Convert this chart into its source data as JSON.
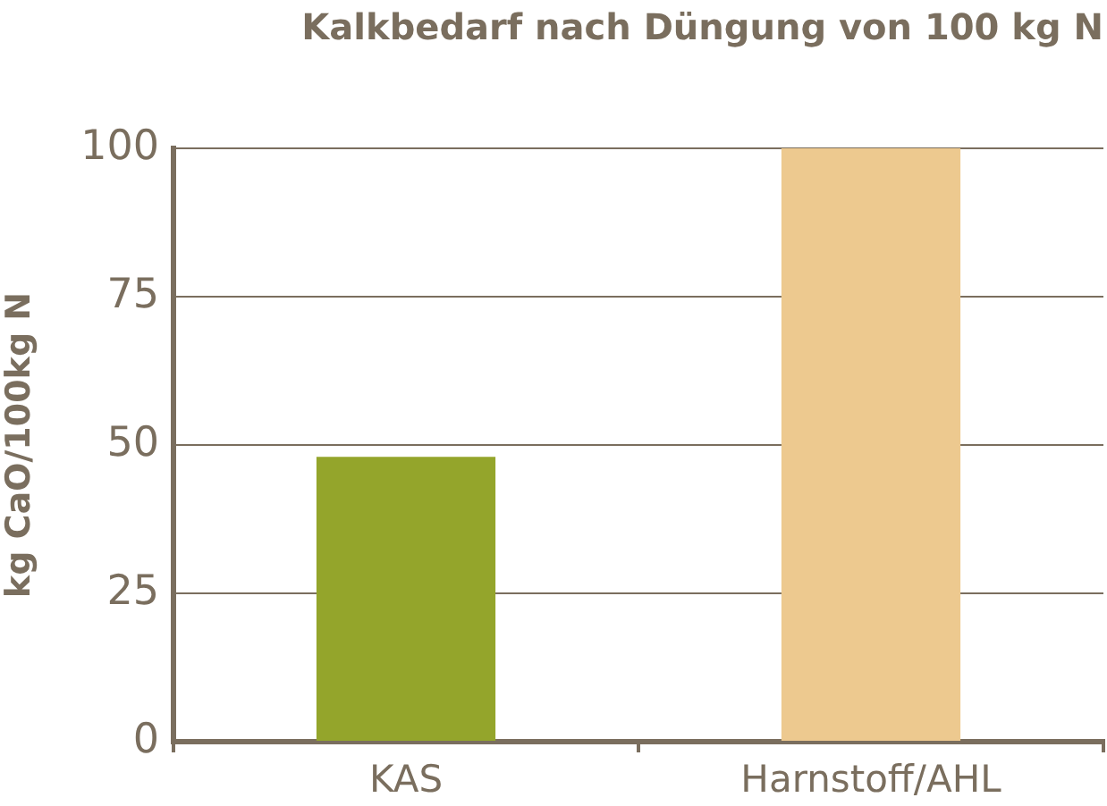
{
  "chart_data": {
    "type": "bar",
    "title": "Kalkbedarf nach Düngung von 100 kg N",
    "ylabel": "kg CaO/100kg N",
    "categories": [
      "KAS",
      "Harnstoff/AHL"
    ],
    "values": [
      48,
      100
    ],
    "colors": [
      "#94a52b",
      "#edc98f"
    ],
    "ylim": [
      0,
      100
    ],
    "yticks": [
      0,
      25,
      50,
      75,
      100
    ],
    "grid": "y",
    "legend": false
  }
}
